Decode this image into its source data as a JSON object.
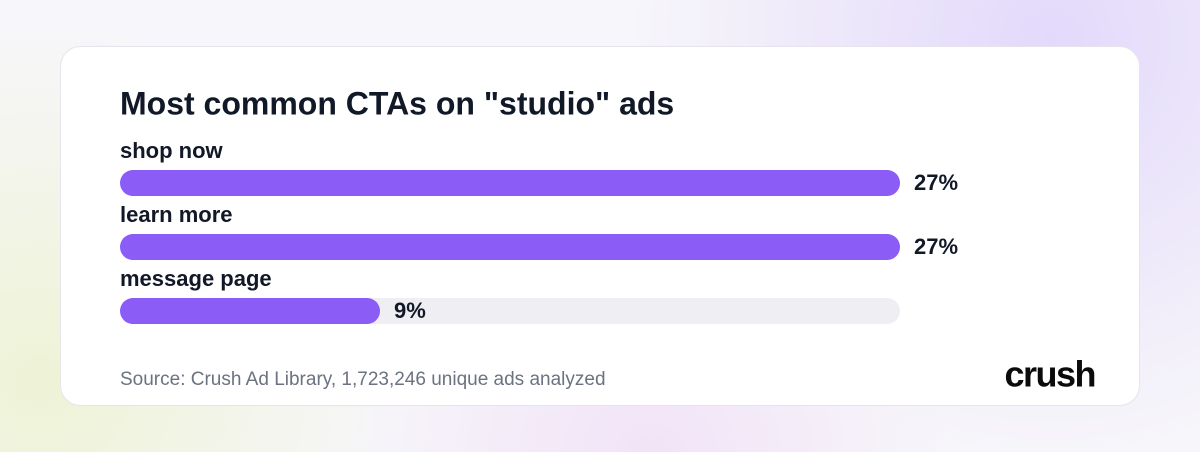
{
  "chart_data": {
    "type": "hbar",
    "title": "Most common CTAs on \"studio\" ads",
    "categories": [
      "shop now",
      "learn more",
      "message page"
    ],
    "values": [
      27,
      27,
      9
    ],
    "value_labels": [
      "27%",
      "27%",
      "9%"
    ],
    "color": "#8b5cf6",
    "track_color": "#efeff3",
    "xlim": [
      0,
      27
    ]
  },
  "source": "Source: Crush Ad Library, 1,723,246 unique ads analyzed",
  "logo": "crush"
}
